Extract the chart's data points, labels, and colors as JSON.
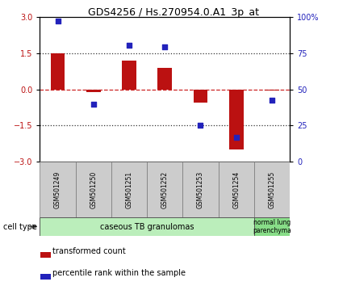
{
  "title": "GDS4256 / Hs.270954.0.A1_3p_at",
  "samples": [
    "GSM501249",
    "GSM501250",
    "GSM501251",
    "GSM501252",
    "GSM501253",
    "GSM501254",
    "GSM501255"
  ],
  "bar_values": [
    1.5,
    -0.1,
    1.2,
    0.9,
    -0.55,
    -2.5,
    -0.05
  ],
  "dot_values": [
    2.85,
    -0.6,
    1.85,
    1.75,
    -1.5,
    -2.0,
    -0.45
  ],
  "ylim": [
    -3,
    3
  ],
  "yticks_left": [
    -3,
    -1.5,
    0,
    1.5,
    3
  ],
  "yticks_right": [
    0,
    25,
    50,
    75,
    100
  ],
  "bar_color": "#bb1111",
  "dot_color": "#2222bb",
  "zero_line_color": "#cc2222",
  "hline_color": "#333333",
  "group1_label": "caseous TB granulomas",
  "group2_label": "normal lung\nparenchyma",
  "group1_indices": [
    0,
    1,
    2,
    3,
    4,
    5
  ],
  "group2_indices": [
    6
  ],
  "group1_color": "#bbeebb",
  "group2_color": "#88dd88",
  "cell_type_label": "cell type",
  "legend_bar_label": "transformed count",
  "legend_dot_label": "percentile rank within the sample",
  "title_fontsize": 9,
  "tick_fontsize": 7,
  "sample_fontsize": 5.5,
  "group_fontsize": 7,
  "legend_fontsize": 7,
  "cell_type_fontsize": 7
}
